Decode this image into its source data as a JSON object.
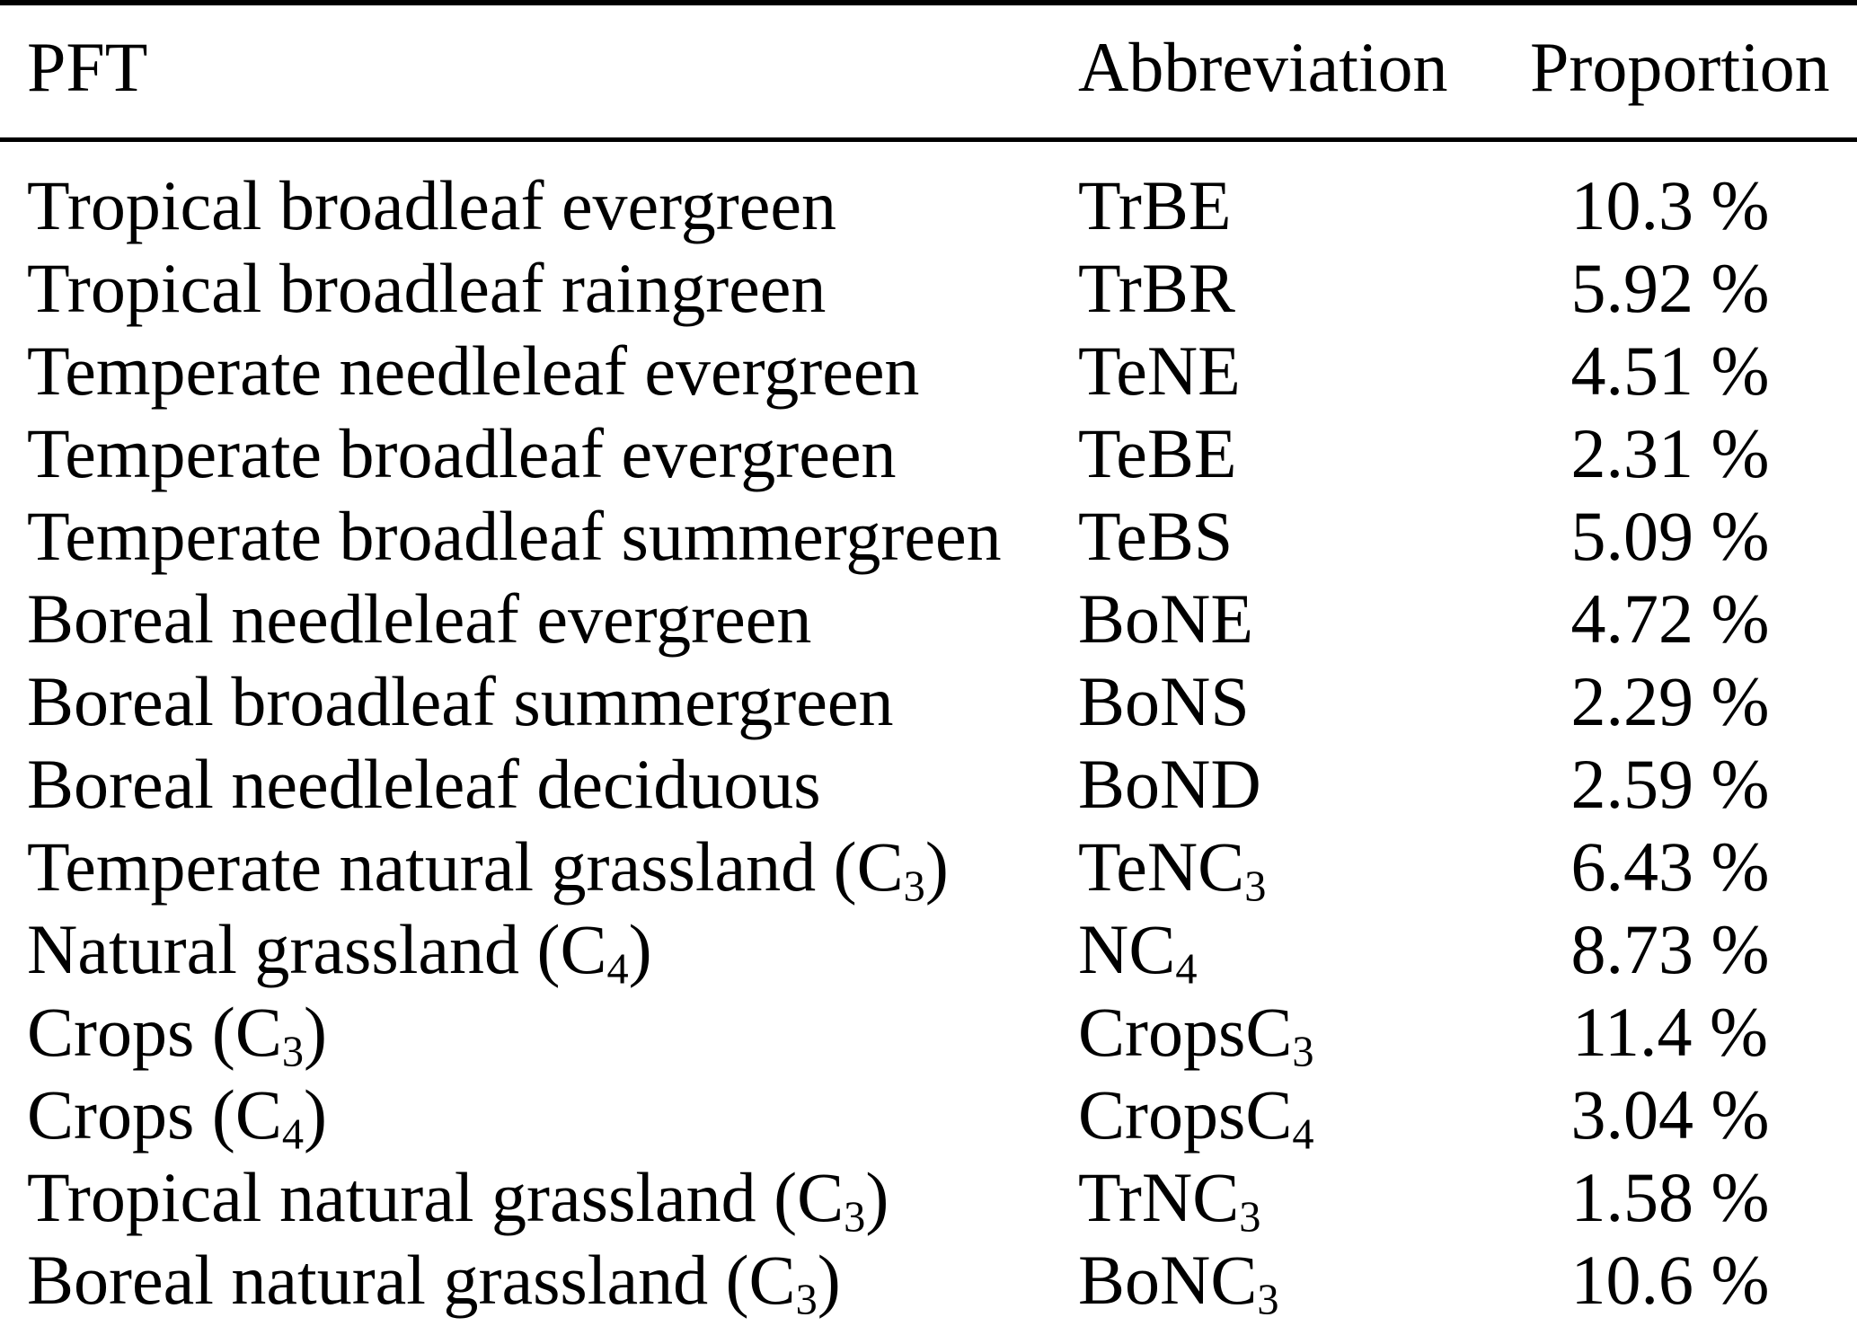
{
  "table": {
    "headers": [
      {
        "key": "pft",
        "label": "PFT",
        "align": "left"
      },
      {
        "key": "abbreviation",
        "label": "Abbreviation",
        "align": "left"
      },
      {
        "key": "proportion",
        "label": "Proportion",
        "align": "center"
      }
    ],
    "rows": [
      {
        "pft": [
          "Tropical broadleaf evergreen"
        ],
        "abbreviation": [
          "TrBE"
        ],
        "proportion": "10.3 %"
      },
      {
        "pft": [
          "Tropical broadleaf raingreen"
        ],
        "abbreviation": [
          "TrBR"
        ],
        "proportion": "5.92 %"
      },
      {
        "pft": [
          "Temperate needleleaf evergreen"
        ],
        "abbreviation": [
          "TeNE"
        ],
        "proportion": "4.51 %"
      },
      {
        "pft": [
          "Temperate broadleaf evergreen"
        ],
        "abbreviation": [
          "TeBE"
        ],
        "proportion": "2.31 %"
      },
      {
        "pft": [
          "Temperate broadleaf summergreen"
        ],
        "abbreviation": [
          "TeBS"
        ],
        "proportion": "5.09 %"
      },
      {
        "pft": [
          "Boreal needleleaf evergreen"
        ],
        "abbreviation": [
          "BoNE"
        ],
        "proportion": "4.72 %"
      },
      {
        "pft": [
          "Boreal broadleaf summergreen"
        ],
        "abbreviation": [
          "BoNS"
        ],
        "proportion": "2.29 %"
      },
      {
        "pft": [
          "Boreal needleleaf deciduous"
        ],
        "abbreviation": [
          "BoND"
        ],
        "proportion": "2.59 %"
      },
      {
        "pft": [
          "Temperate natural grassland (C",
          {
            "sub": "3"
          },
          ")"
        ],
        "abbreviation": [
          "TeNC",
          {
            "sub": "3"
          }
        ],
        "proportion": "6.43 %"
      },
      {
        "pft": [
          "Natural grassland (C",
          {
            "sub": "4"
          },
          ")"
        ],
        "abbreviation": [
          "NC",
          {
            "sub": "4"
          }
        ],
        "proportion": "8.73 %"
      },
      {
        "pft": [
          "Crops (C",
          {
            "sub": "3"
          },
          ")"
        ],
        "abbreviation": [
          "CropsC",
          {
            "sub": "3"
          }
        ],
        "proportion": "11.4 %"
      },
      {
        "pft": [
          "Crops (C",
          {
            "sub": "4"
          },
          ")"
        ],
        "abbreviation": [
          "CropsC",
          {
            "sub": "4"
          }
        ],
        "proportion": "3.04 %"
      },
      {
        "pft": [
          "Tropical natural grassland (C",
          {
            "sub": "3"
          },
          ")"
        ],
        "abbreviation": [
          "TrNC",
          {
            "sub": "3"
          }
        ],
        "proportion": "1.58 %"
      },
      {
        "pft": [
          "Boreal natural grassland (C",
          {
            "sub": "3"
          },
          ")"
        ],
        "abbreviation": [
          "BoNC",
          {
            "sub": "3"
          }
        ],
        "proportion": "10.6 %"
      }
    ]
  },
  "colors": {
    "text": "#000000",
    "background": "#ffffff",
    "rules": "#000000"
  }
}
